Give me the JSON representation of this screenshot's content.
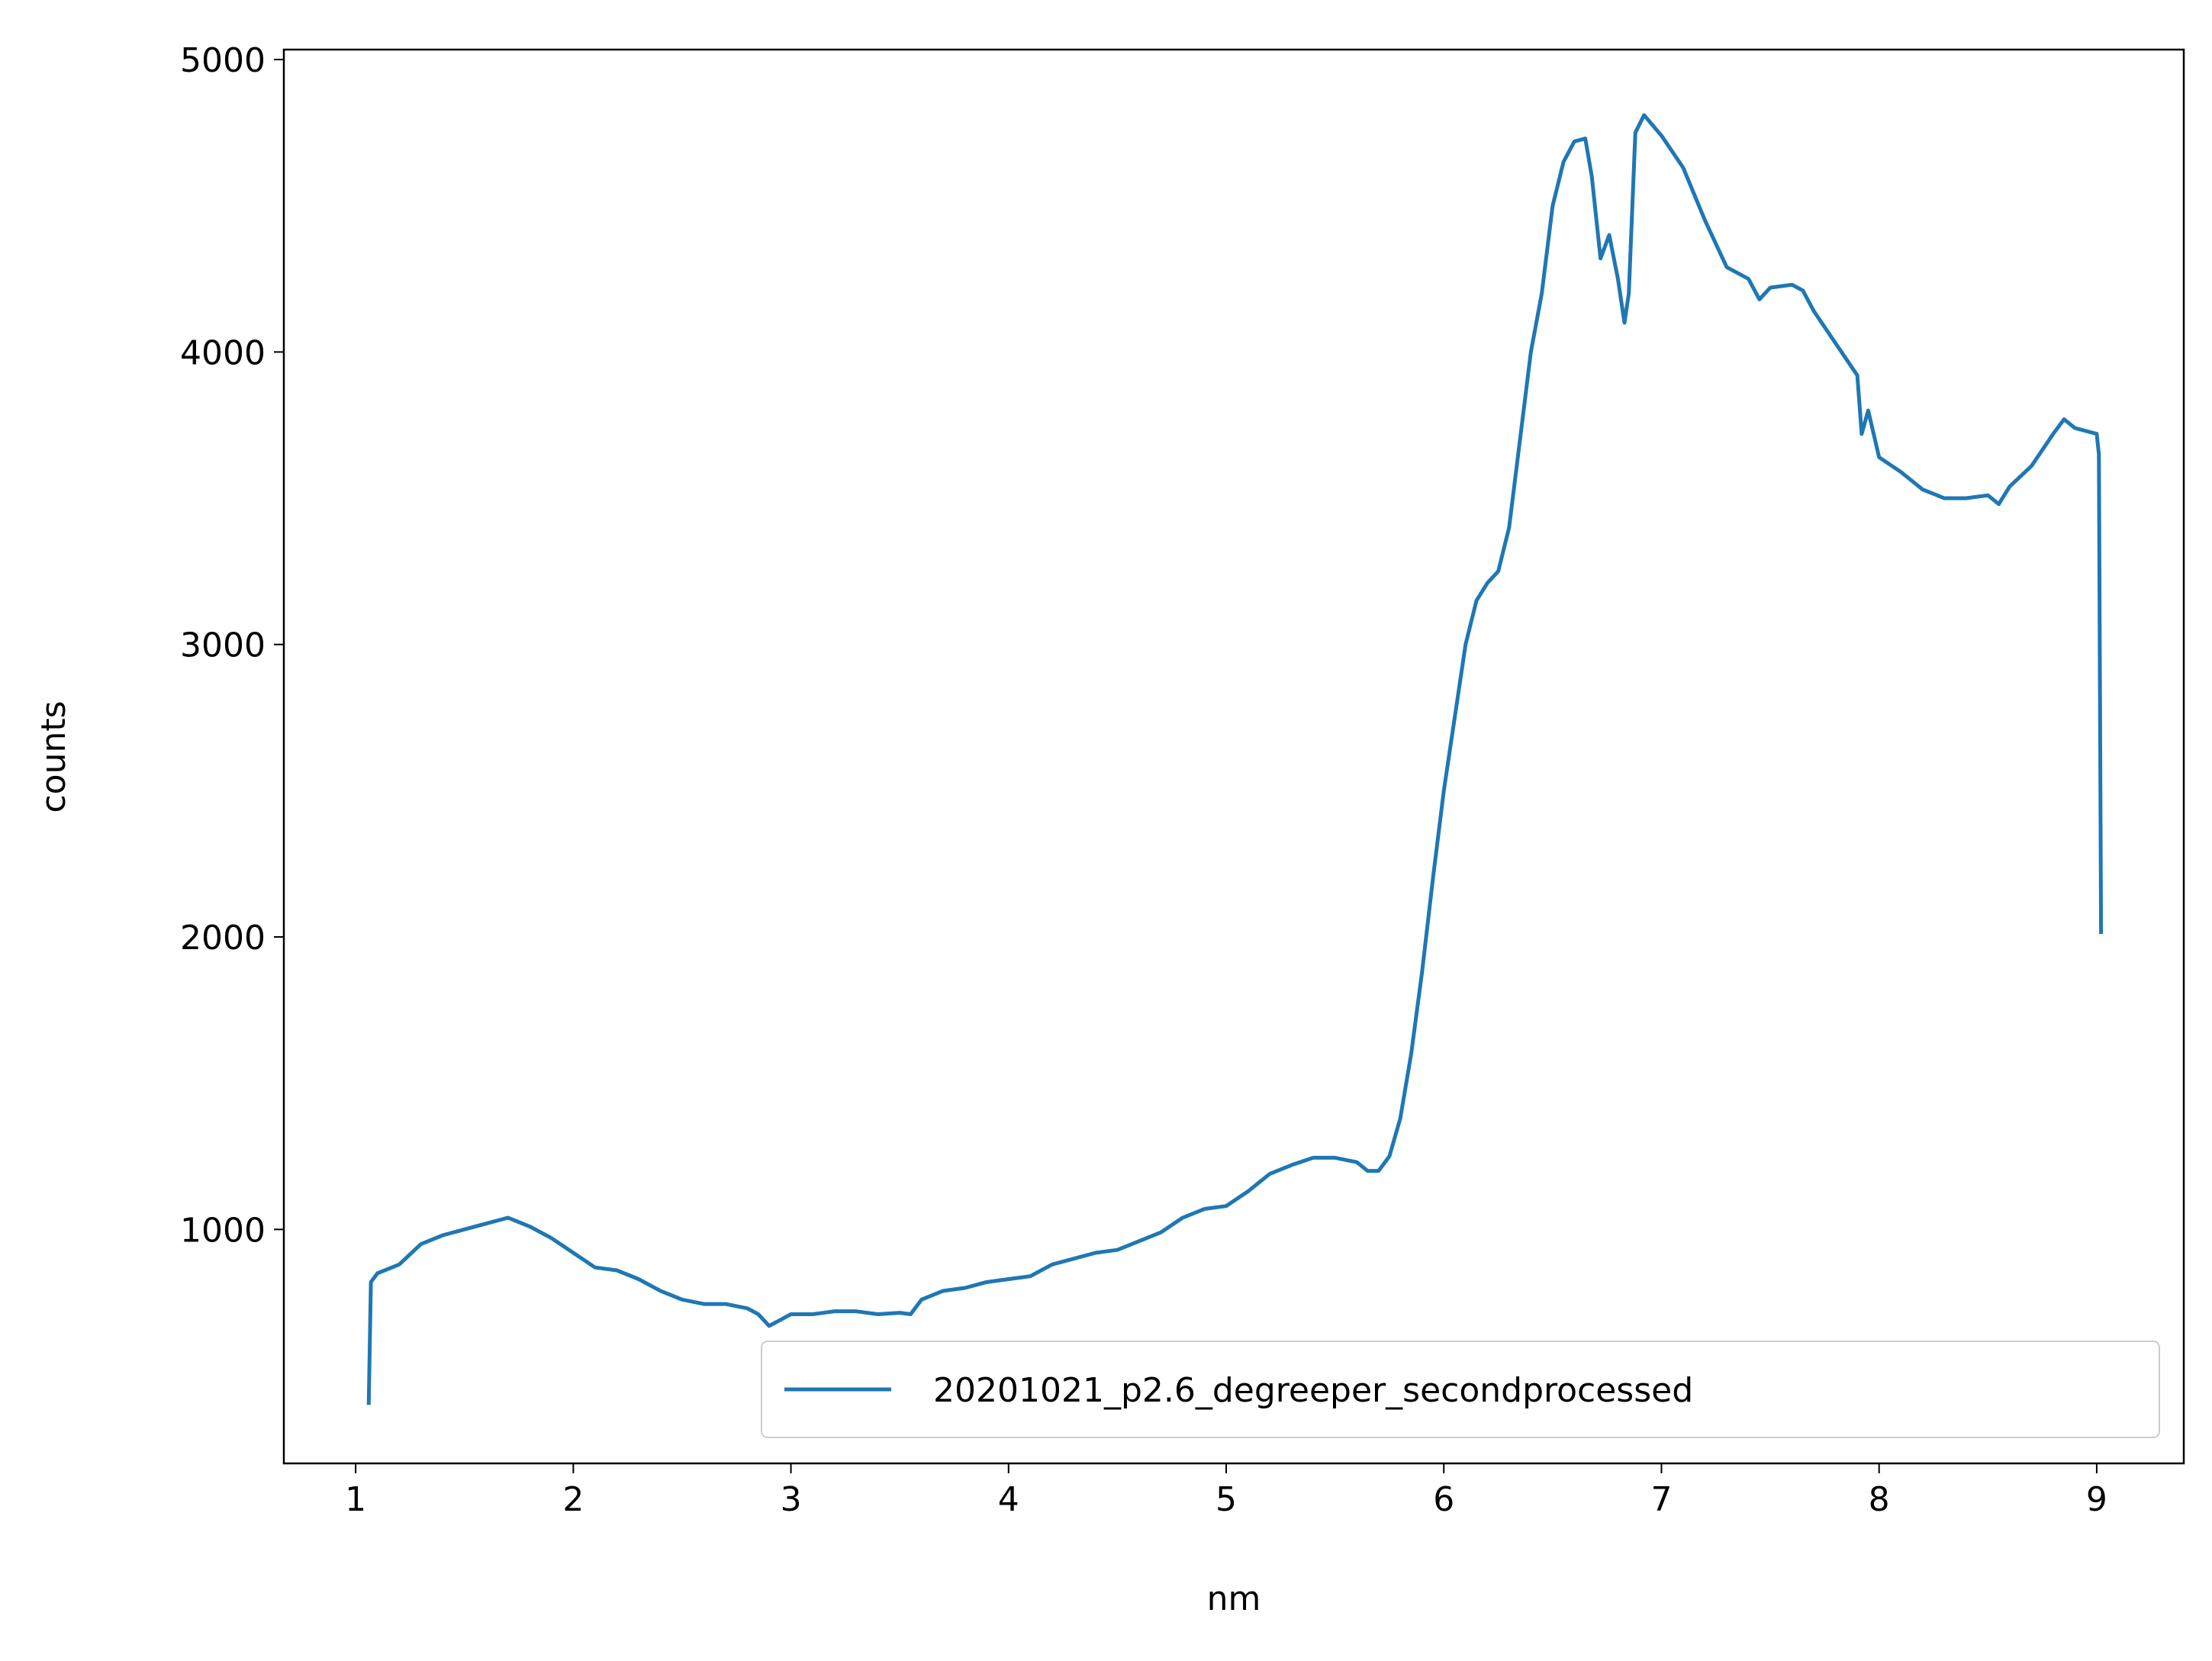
{
  "chart_data": {
    "type": "line",
    "xlabel": "nm",
    "ylabel": "counts",
    "xlim": [
      0.67,
      9.4
    ],
    "xticks": [
      1,
      2,
      3,
      4,
      5,
      6,
      7,
      8,
      9
    ],
    "ylim": [
      200,
      5034
    ],
    "yticks": [
      1000,
      2000,
      3000,
      4000,
      5000
    ],
    "legend_loc": "lower right",
    "x": [
      1.06,
      1.07,
      1.1,
      1.2,
      1.3,
      1.4,
      1.5,
      1.6,
      1.7,
      1.8,
      1.9,
      2.0,
      2.1,
      2.2,
      2.3,
      2.4,
      2.5,
      2.6,
      2.7,
      2.8,
      2.85,
      2.9,
      3.0,
      3.1,
      3.2,
      3.3,
      3.4,
      3.5,
      3.55,
      3.6,
      3.7,
      3.8,
      3.9,
      4.0,
      4.1,
      4.2,
      4.3,
      4.4,
      4.5,
      4.6,
      4.7,
      4.8,
      4.9,
      5.0,
      5.1,
      5.2,
      5.3,
      5.4,
      5.5,
      5.6,
      5.65,
      5.7,
      5.75,
      5.8,
      5.85,
      5.9,
      5.95,
      6.0,
      6.05,
      6.1,
      6.15,
      6.2,
      6.25,
      6.3,
      6.35,
      6.4,
      6.45,
      6.5,
      6.55,
      6.6,
      6.65,
      6.68,
      6.72,
      6.76,
      6.8,
      6.83,
      6.85,
      6.88,
      6.92,
      7.0,
      7.1,
      7.2,
      7.3,
      7.4,
      7.45,
      7.5,
      7.6,
      7.65,
      7.7,
      7.8,
      7.9,
      7.92,
      7.95,
      8.0,
      8.1,
      8.2,
      8.3,
      8.4,
      8.5,
      8.55,
      8.6,
      8.7,
      8.8,
      8.85,
      8.9,
      9.0,
      9.01,
      9.02
    ],
    "series": [
      {
        "name": "20201021_p2.6_degreeper_secondprocessed",
        "color": "#1f77b4",
        "values": [
          400,
          820,
          850,
          880,
          950,
          980,
          1000,
          1020,
          1040,
          1010,
          970,
          920,
          870,
          860,
          830,
          790,
          760,
          745,
          745,
          730,
          710,
          670,
          710,
          710,
          720,
          720,
          710,
          715,
          710,
          760,
          790,
          800,
          820,
          830,
          840,
          880,
          900,
          920,
          930,
          960,
          990,
          1040,
          1070,
          1080,
          1130,
          1190,
          1220,
          1245,
          1245,
          1230,
          1200,
          1200,
          1250,
          1380,
          1600,
          1880,
          2200,
          2500,
          2750,
          3000,
          3150,
          3210,
          3250,
          3400,
          3700,
          4000,
          4200,
          4500,
          4650,
          4720,
          4730,
          4600,
          4320,
          4400,
          4250,
          4100,
          4200,
          4750,
          4810,
          4740,
          4630,
          4450,
          4290,
          4250,
          4180,
          4220,
          4230,
          4210,
          4140,
          4030,
          3920,
          3720,
          3800,
          3640,
          3590,
          3530,
          3500,
          3500,
          3510,
          3480,
          3540,
          3610,
          3720,
          3770,
          3740,
          3720,
          3650,
          2010
        ]
      }
    ]
  }
}
